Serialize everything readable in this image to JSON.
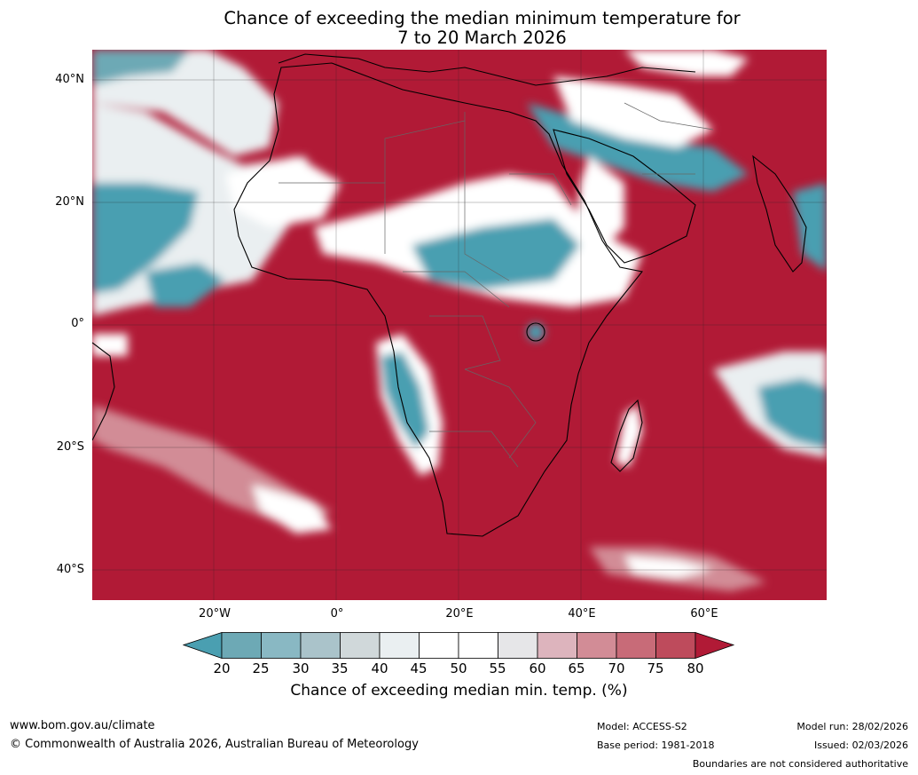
{
  "title": {
    "line1": "Chance of exceeding the median minimum temperature for",
    "line2": "7 to 20 March 2026"
  },
  "map": {
    "lat_labels": [
      "40°N",
      "20°N",
      "0°",
      "20°S",
      "40°S"
    ],
    "lon_labels": [
      "20°W",
      "0°",
      "20°E",
      "40°E",
      "60°E"
    ]
  },
  "colorbar": {
    "ticks": [
      "20",
      "25",
      "30",
      "35",
      "40",
      "45",
      "50",
      "55",
      "60",
      "65",
      "70",
      "75",
      "80"
    ],
    "colors": [
      "#4a9fb1",
      "#6da9b5",
      "#89b8c3",
      "#aac3ca",
      "#d0d8da",
      "#eaeff1",
      "#ffffff",
      "#ffffff",
      "#e6e6e8",
      "#ddb4bd",
      "#d28c96",
      "#c86b78",
      "#be4b5c",
      "#b11a36"
    ],
    "label": "Chance of exceeding median min. temp. (%)"
  },
  "footer": {
    "website": "www.bom.gov.au/climate",
    "copyright": "© Commonwealth of Australia 2026, Australian Bureau of Meteorology",
    "model": "Model: ACCESS-S2",
    "base_period": "Base period: 1981-2018",
    "model_run": "Model run: 28/02/2026",
    "issued": "Issued: 02/03/2026",
    "disclaimer": "Boundaries are not considered authoritative"
  }
}
